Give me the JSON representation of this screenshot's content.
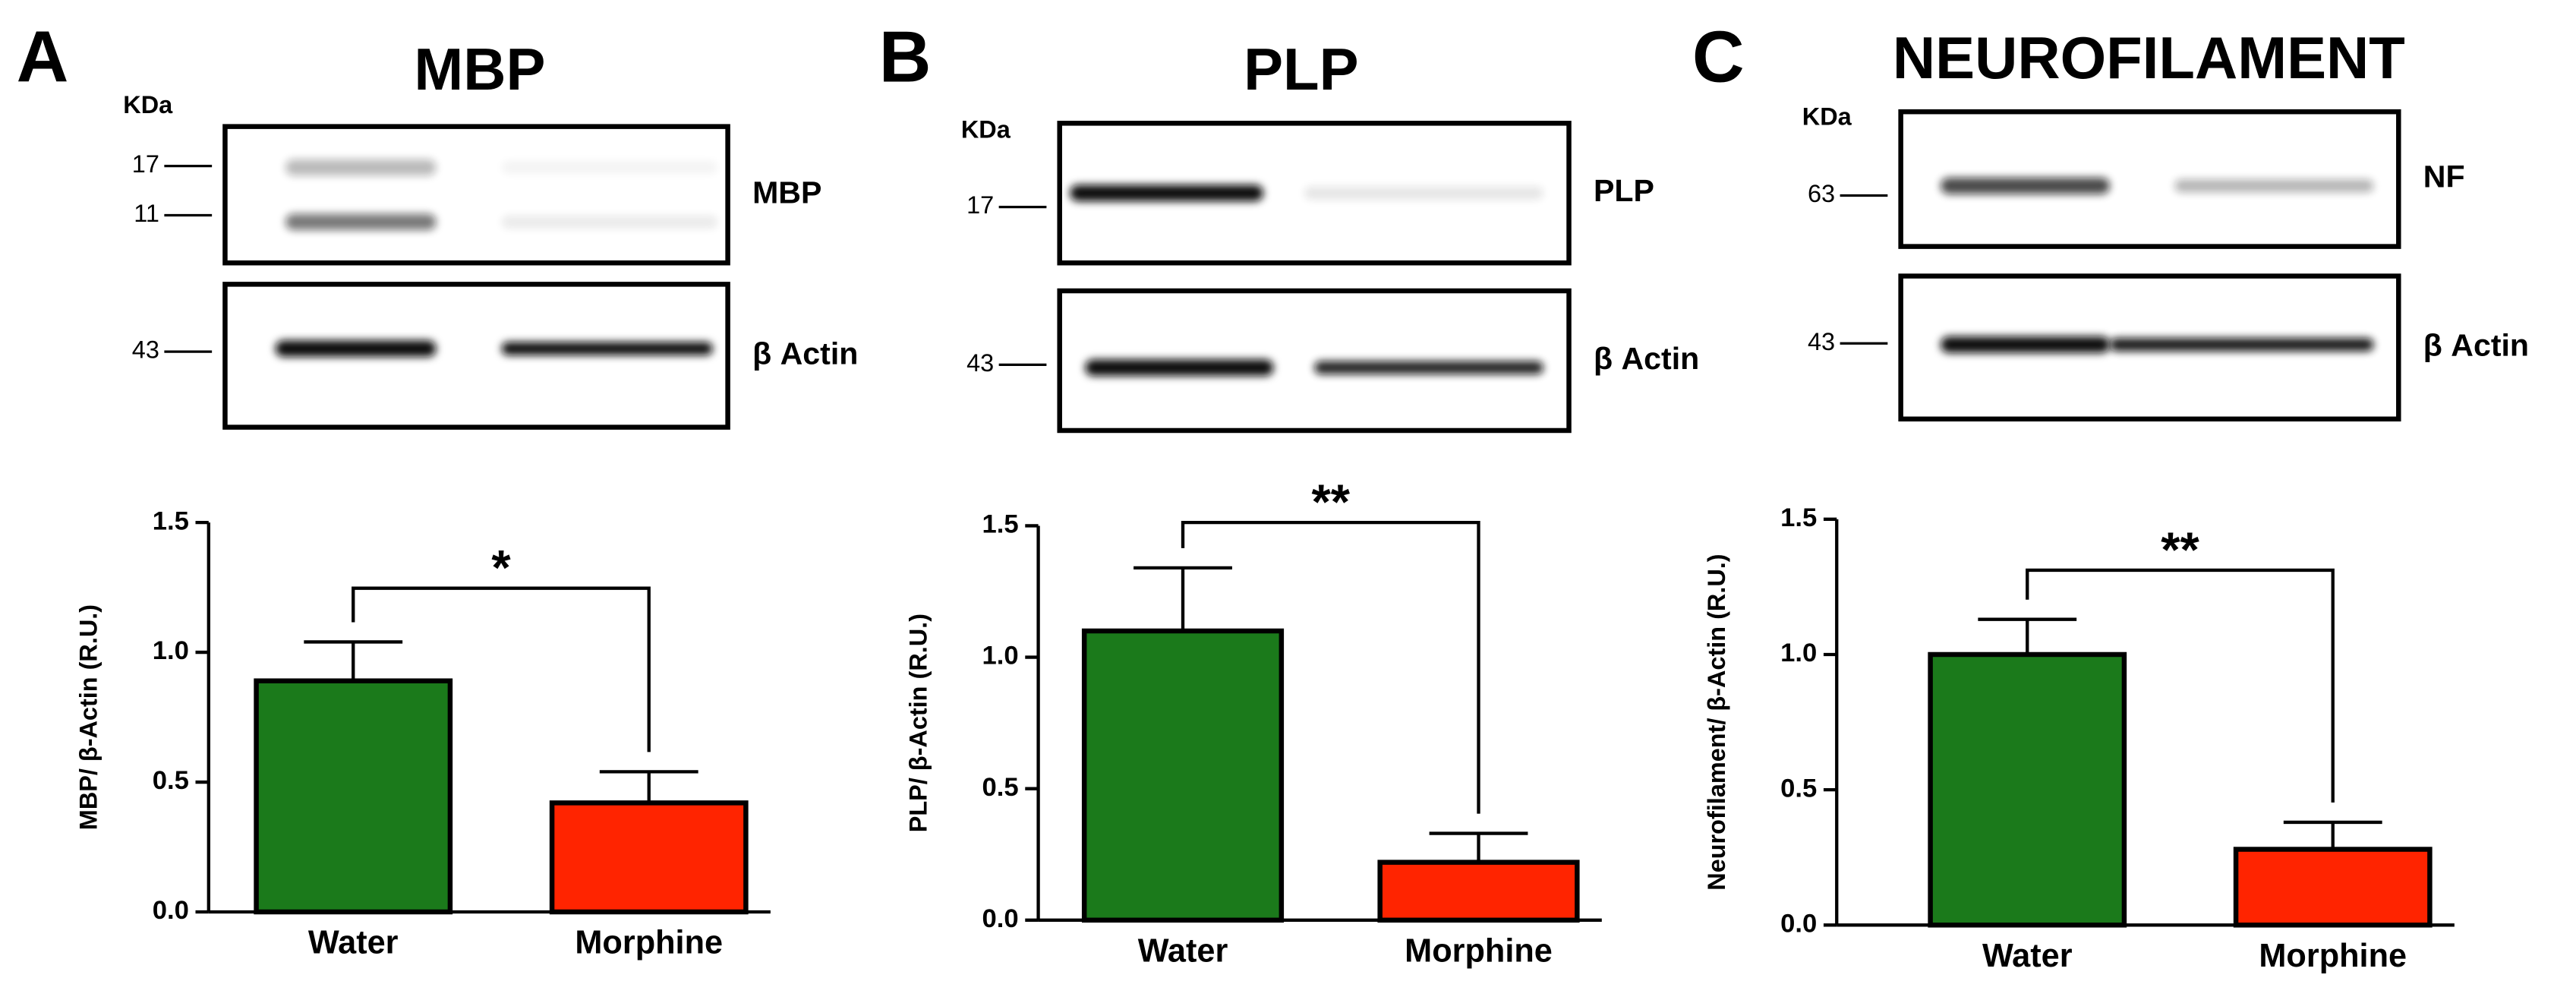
{
  "chart_data": [
    {
      "type": "bar",
      "panel": "A",
      "title": "MBP",
      "blot": {
        "unit": "KDa",
        "rows": [
          {
            "label": "MBP",
            "markers": [
              17,
              11
            ]
          },
          {
            "label": "β Actin",
            "markers": [
              43
            ]
          }
        ]
      },
      "categories": [
        "Water",
        "Morphine"
      ],
      "values": [
        0.89,
        0.42
      ],
      "errors": [
        0.15,
        0.12
      ],
      "colors": [
        "#1b7a1b",
        "#ff2400"
      ],
      "ylabel": "MBP/ β-Actin (R.U.)",
      "ylim": [
        0,
        1.5
      ],
      "yticks": [
        {
          "value": 0,
          "label": "0.0"
        },
        0.5,
        {
          "value": 1,
          "label": "1.0"
        },
        1.5
      ],
      "significance": "*"
    },
    {
      "type": "bar",
      "panel": "B",
      "title": "PLP",
      "blot": {
        "unit": "KDa",
        "rows": [
          {
            "label": "PLP",
            "markers": [
              17
            ]
          },
          {
            "label": "β Actin",
            "markers": [
              43
            ]
          }
        ]
      },
      "categories": [
        "Water",
        "Morphine"
      ],
      "values": [
        1.1,
        0.22
      ],
      "errors": [
        0.24,
        0.11
      ],
      "colors": [
        "#1b7a1b",
        "#ff2400"
      ],
      "ylabel": "PLP/ β-Actin (R.U.)",
      "ylim": [
        0,
        1.5
      ],
      "yticks": [
        {
          "value": 0,
          "label": "0.0"
        },
        0.5,
        {
          "value": 1,
          "label": "1.0"
        },
        1.5
      ],
      "significance": "**"
    },
    {
      "type": "bar",
      "panel": "C",
      "title": "NEUROFILAMENT",
      "blot": {
        "unit": "KDa",
        "rows": [
          {
            "label": "NF",
            "markers": [
              63
            ]
          },
          {
            "label": "β Actin",
            "markers": [
              43
            ]
          }
        ]
      },
      "categories": [
        "Water",
        "Morphine"
      ],
      "values": [
        1.0,
        0.28
      ],
      "errors": [
        0.13,
        0.1
      ],
      "colors": [
        "#1b7a1b",
        "#ff2400"
      ],
      "ylabel": "Neurofilament/ β-Actin (R.U.)",
      "ylim": [
        0,
        1.5
      ],
      "yticks": [
        {
          "value": 0,
          "label": "0.0"
        },
        0.5,
        {
          "value": 1,
          "label": "1.0"
        },
        1.5
      ],
      "significance": "**"
    }
  ]
}
